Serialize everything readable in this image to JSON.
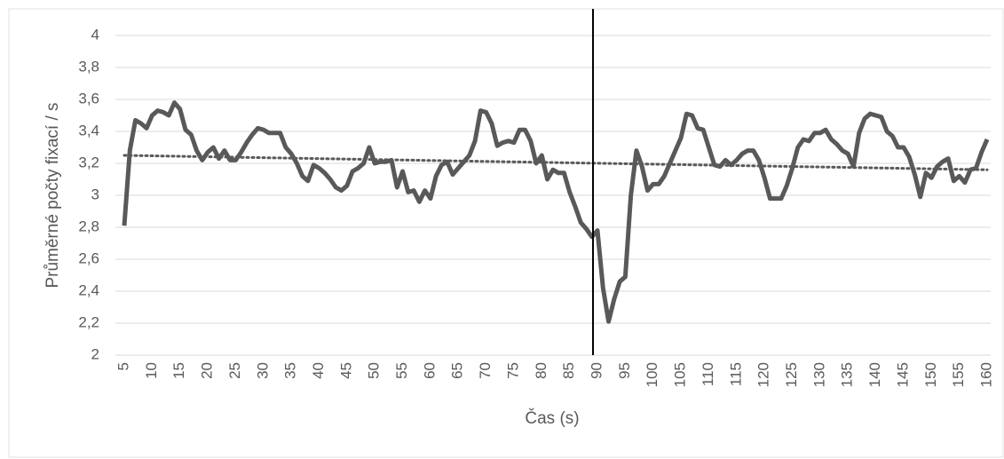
{
  "chart_data": {
    "type": "line",
    "x_label": "Čas (s)",
    "y_label": "Průměrné počty fixací / s",
    "color": "#595959",
    "x": [
      5,
      6,
      7,
      8,
      9,
      10,
      11,
      12,
      13,
      14,
      15,
      16,
      17,
      18,
      19,
      20,
      21,
      22,
      23,
      24,
      25,
      26,
      27,
      28,
      29,
      30,
      31,
      32,
      33,
      34,
      35,
      36,
      37,
      38,
      39,
      40,
      41,
      42,
      43,
      44,
      45,
      46,
      47,
      48,
      49,
      50,
      51,
      52,
      53,
      54,
      55,
      56,
      57,
      58,
      59,
      60,
      61,
      62,
      63,
      64,
      65,
      66,
      67,
      68,
      69,
      70,
      71,
      72,
      73,
      74,
      75,
      76,
      77,
      78,
      79,
      80,
      81,
      82,
      83,
      84,
      85,
      86,
      87,
      88,
      89,
      90,
      91,
      92,
      93,
      94,
      95,
      96,
      97,
      98,
      99,
      100,
      101,
      102,
      103,
      104,
      105,
      106,
      107,
      108,
      109,
      110,
      111,
      112,
      113,
      114,
      115,
      116,
      117,
      118,
      119,
      120,
      121,
      122,
      123,
      124,
      125,
      126,
      127,
      128,
      129,
      130,
      131,
      132,
      133,
      134,
      135,
      136,
      137,
      138,
      139,
      140,
      141,
      142,
      143,
      144,
      145,
      146,
      147,
      148,
      149,
      150,
      151,
      152,
      153,
      154,
      155,
      156,
      157,
      158,
      159,
      160
    ],
    "values": [
      2.81,
      3.28,
      3.47,
      3.45,
      3.42,
      3.5,
      3.53,
      3.52,
      3.5,
      3.58,
      3.54,
      3.41,
      3.38,
      3.28,
      3.22,
      3.27,
      3.3,
      3.23,
      3.28,
      3.22,
      3.22,
      3.27,
      3.33,
      3.38,
      3.42,
      3.41,
      3.39,
      3.39,
      3.39,
      3.3,
      3.26,
      3.2,
      3.12,
      3.09,
      3.19,
      3.17,
      3.14,
      3.1,
      3.05,
      3.03,
      3.06,
      3.15,
      3.17,
      3.2,
      3.3,
      3.2,
      3.21,
      3.21,
      3.22,
      3.05,
      3.15,
      3.02,
      3.03,
      2.96,
      3.03,
      2.98,
      3.12,
      3.19,
      3.21,
      3.13,
      3.17,
      3.21,
      3.25,
      3.34,
      3.53,
      3.52,
      3.45,
      3.31,
      3.33,
      3.34,
      3.33,
      3.41,
      3.41,
      3.34,
      3.2,
      3.25,
      3.1,
      3.16,
      3.14,
      3.14,
      3.02,
      2.93,
      2.83,
      2.79,
      2.74,
      2.78,
      2.42,
      2.21,
      2.35,
      2.46,
      2.49,
      3.0,
      3.28,
      3.18,
      3.03,
      3.07,
      3.07,
      3.12,
      3.2,
      3.28,
      3.36,
      3.51,
      3.5,
      3.42,
      3.41,
      3.3,
      3.19,
      3.18,
      3.22,
      3.19,
      3.22,
      3.26,
      3.28,
      3.28,
      3.22,
      3.11,
      2.98,
      2.98,
      2.98,
      3.06,
      3.17,
      3.3,
      3.35,
      3.34,
      3.39,
      3.39,
      3.41,
      3.35,
      3.32,
      3.28,
      3.26,
      3.18,
      3.39,
      3.48,
      3.51,
      3.5,
      3.49,
      3.4,
      3.37,
      3.3,
      3.3,
      3.24,
      3.13,
      2.99,
      3.14,
      3.11,
      3.18,
      3.21,
      3.23,
      3.09,
      3.12,
      3.08,
      3.16,
      3.17,
      3.27,
      3.35
    ],
    "trendline": {
      "x": [
        5,
        160
      ],
      "values": [
        3.25,
        3.16
      ]
    },
    "marker_x": 89.2,
    "xlim": [
      5,
      160
    ],
    "xticks": [
      5,
      10,
      15,
      20,
      25,
      30,
      35,
      40,
      45,
      50,
      55,
      60,
      65,
      70,
      75,
      80,
      85,
      90,
      95,
      100,
      105,
      110,
      115,
      120,
      125,
      130,
      135,
      140,
      145,
      150,
      155,
      160
    ],
    "ylim": [
      2,
      4
    ],
    "yticks": [
      2,
      {
        "value": 2.2,
        "label": "2,2"
      },
      {
        "value": 2.4,
        "label": "2,4"
      },
      {
        "value": 2.6,
        "label": "2,6"
      },
      {
        "value": 2.8,
        "label": "2,8"
      },
      3,
      {
        "value": 3.2,
        "label": "3,2"
      },
      {
        "value": 3.4,
        "label": "3,4"
      },
      {
        "value": 3.6,
        "label": "3,6"
      },
      {
        "value": 3.8,
        "label": "3,8"
      },
      4
    ],
    "grid": true
  }
}
